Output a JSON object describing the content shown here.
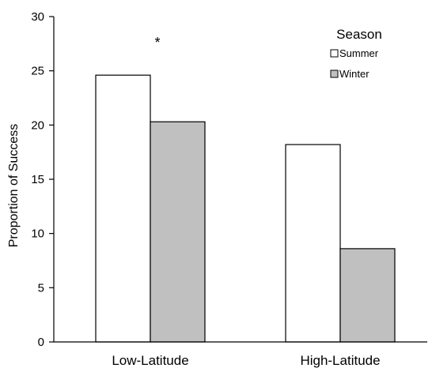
{
  "chart_data": {
    "type": "bar",
    "categories": [
      "Low-Latitude",
      "High-Latitude"
    ],
    "series": [
      {
        "name": "Summer",
        "values": [
          24.6,
          18.2
        ],
        "color": "#ffffff"
      },
      {
        "name": "Winter",
        "values": [
          20.3,
          8.6
        ],
        "color": "#c0c0c0"
      }
    ],
    "ylabel": "Proportion of Success",
    "ylim": [
      0,
      30
    ],
    "yticks": [
      0,
      5,
      10,
      15,
      20,
      25,
      30
    ],
    "grid": false,
    "legend": {
      "title": "Season",
      "placement": "top-right"
    },
    "annotations": [
      {
        "text": "*",
        "category": "Low-Latitude"
      }
    ]
  }
}
